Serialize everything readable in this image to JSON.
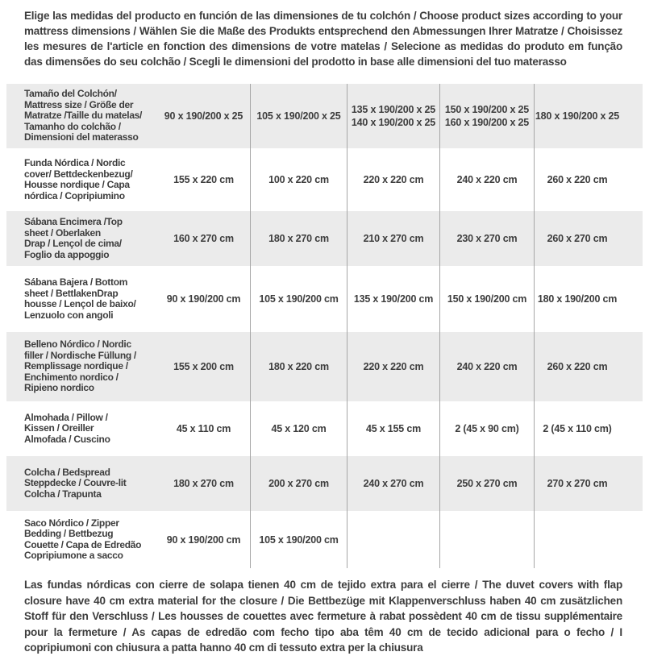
{
  "page": {
    "intro": "Elige las medidas del producto en función de las dimensiones de tu colchón / Choose product sizes according to your mattress dimensions / Wählen Sie die Maße des Produkts entsprechend den Abmessungen Ihrer Matratze / Choisissez les mesures de l'article en fonction des dimensions de votre matelas / Selecione as medidas do produto em função das dimensões do seu colchão / Scegli le dimensioni del prodotto in base alle dimensioni del tuo materasso",
    "footnote": "Las fundas nórdicas con cierre de solapa tienen 40 cm de tejido extra para el cierre / The duvet covers with flap closure have 40 cm extra material for the closure / Die Bettbezüge mit Klappenverschluss haben 40 cm zusätzlichen Stoff für den Verschluss / Les housses de couettes avec fermeture à rabat possèdent 40 cm de tissu supplémentaire pour la fermeture / As capas de edredão com fecho tipo aba têm 40 cm de tecido adicional para o fecho / I copripiumoni con chiusura a patta hanno 40 cm di tessuto extra per la chiusura"
  },
  "colors": {
    "row_alt_background": "#ebebeb",
    "divider": "#a6a6a6",
    "text": "#3d3d3d"
  },
  "table": {
    "rows": [
      {
        "label": "Tamaño del Colchón/\nMattress size / Größe der\nMatratze /Taille du matelas/\nTamanho do colchão /\nDimensioni del materasso",
        "values": [
          "90 x 190/200 x 25",
          "105 x 190/200 x 25",
          "135 x 190/200 x 25\n140 x 190/200 x 25",
          "150 x 190/200 x 25\n160 x 190/200 x 25",
          "180 x 190/200 x 25"
        ]
      },
      {
        "label": "Funda Nórdica /  Nordic\ncover/ Bettdeckenbezug/\nHousse nordique  / Capa\nnórdica / Copripiumino",
        "values": [
          "155 x 220 cm",
          "100 x 220 cm",
          "220 x 220 cm",
          "240 x 220 cm",
          "260 x 220 cm"
        ]
      },
      {
        "label": "Sábana Encimera /Top\nsheet / Oberlaken\nDrap / Lençol de cima/\nFoglio da appoggio",
        "values": [
          "160 x 270 cm",
          "180 x 270 cm",
          "210 x 270 cm",
          "230 x 270 cm",
          "260 x 270 cm"
        ]
      },
      {
        "label": "Sábana Bajera / Bottom\nsheet / BettlakenDrap\nhousse / Lençol de baixo/\nLenzuolo con angoli",
        "values": [
          "90 x 190/200 cm",
          "105 x 190/200 cm",
          "135 x 190/200 cm",
          "150 x 190/200 cm",
          "180 x 190/200 cm"
        ]
      },
      {
        "label": "Belleno Nórdico / Nordic\nfiller / Nordische Füllung /\nRemplissage nordique /\nEnchimento nordico /\nRipieno nordico",
        "values": [
          "155 x 200 cm",
          "180 x 220 cm",
          "220 x 220 cm",
          "240 x 220 cm",
          "260 x 220 cm"
        ]
      },
      {
        "label": "Almohada  / Pillow /\nKissen / Oreiller\nAlmofada / Cuscino",
        "values": [
          "45 x 110 cm",
          "45 x 120 cm",
          "45 x 155 cm",
          "2 (45 x 90 cm)",
          "2 (45 x 110 cm)"
        ]
      },
      {
        "label": "Colcha / Bedspread\nSteppdecke / Couvre-lit\nColcha / Trapunta",
        "values": [
          "180 x 270 cm",
          "200 x 270 cm",
          "240 x 270 cm",
          "250 x 270 cm",
          "270 x 270 cm"
        ]
      },
      {
        "label": "Saco Nórdico / Zipper\nBedding / Bettbezug\nCouette  / Capa de Edredão\nCopripiumone a sacco",
        "values": [
          "90 x 190/200 cm",
          "105 x 190/200 cm",
          "",
          "",
          ""
        ]
      }
    ]
  }
}
